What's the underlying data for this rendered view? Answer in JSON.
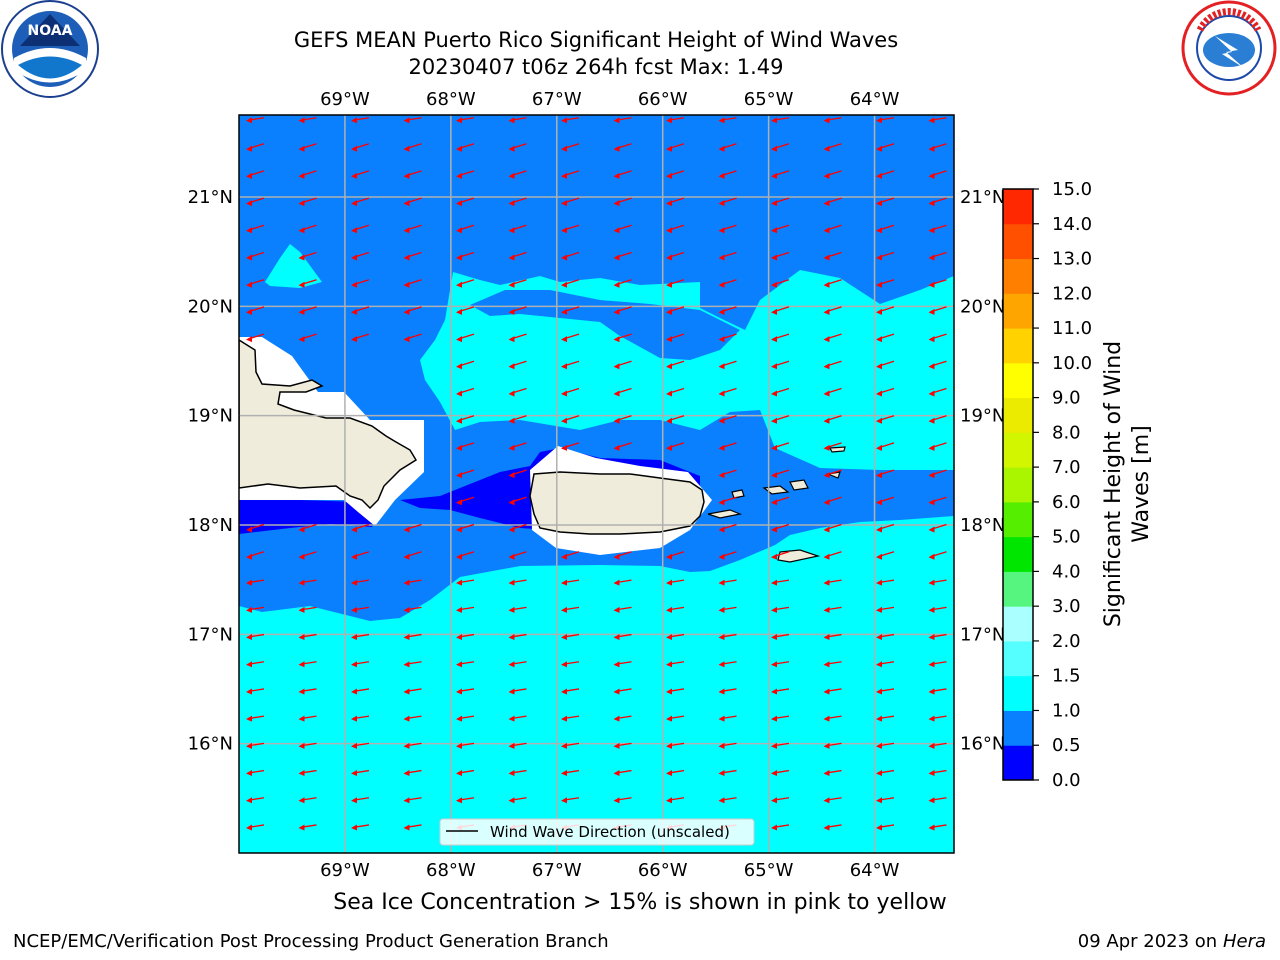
{
  "title_line1": "GEFS MEAN Puerto Rico Significant Height of Wind Waves",
  "title_line2": "20230407 t06z 264h fcst   Max: 1.49",
  "caption": "Sea Ice Concentration > 15% is shown in pink to yellow",
  "footer_left": "NCEP/EMC/Verification Post Processing Product Generation Branch",
  "footer_date": "09 Apr 2023 on ",
  "footer_host": "Hera",
  "legend_label": "Wind Wave Direction (unscaled)",
  "colorbar_title_line1": "Significant Height of Wind",
  "colorbar_title_line2": "Waves [m]",
  "logos": [
    "noaa-logo",
    "national-weather-service-logo"
  ],
  "map": {
    "lon_range": [
      -70,
      -63.25
    ],
    "lat_range": [
      15,
      21.75
    ],
    "lon_ticks": [
      {
        "value": -69,
        "label": "69°W"
      },
      {
        "value": -68,
        "label": "68°W"
      },
      {
        "value": -67,
        "label": "67°W"
      },
      {
        "value": -66,
        "label": "66°W"
      },
      {
        "value": -65,
        "label": "65°W"
      },
      {
        "value": -64,
        "label": "64°W"
      }
    ],
    "lat_ticks": [
      {
        "value": 16,
        "label": "16°N"
      },
      {
        "value": 17,
        "label": "17°N"
      },
      {
        "value": 18,
        "label": "18°N"
      },
      {
        "value": 19,
        "label": "19°N"
      },
      {
        "value": 20,
        "label": "20°N"
      },
      {
        "value": 21,
        "label": "21°N"
      }
    ],
    "colors": {
      "ocean_0_5_1_0": "#0a80ff",
      "ocean_1_0_1_5": "#00ffff",
      "ocean_0_0_0_5": "#0000ff",
      "land": "#efecdc",
      "arrow": "#ff0000",
      "grid": "#b0b0b0"
    }
  },
  "colorbar": {
    "ticks": [
      "0.0",
      "0.5",
      "1.0",
      "1.5",
      "2.0",
      "3.0",
      "4.0",
      "5.0",
      "6.0",
      "7.0",
      "8.0",
      "9.0",
      "10.0",
      "11.0",
      "12.0",
      "13.0",
      "14.0",
      "15.0"
    ],
    "colors": [
      "#0000ff",
      "#0a80ff",
      "#00ffff",
      "#55ffff",
      "#aaffff",
      "#55f580",
      "#00e600",
      "#55ee00",
      "#aaf500",
      "#d2f500",
      "#ebeb00",
      "#ffff00",
      "#ffd200",
      "#ffa500",
      "#ff7f00",
      "#ff5000",
      "#ff2800"
    ]
  }
}
